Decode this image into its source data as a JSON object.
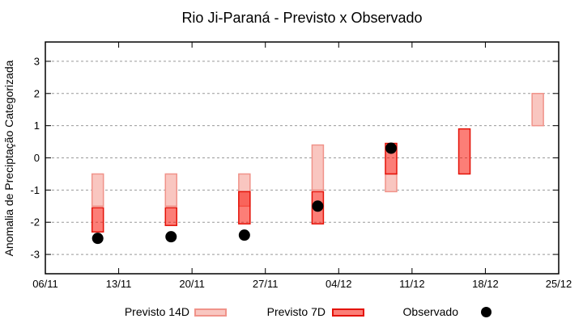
{
  "chart_data": {
    "type": "bar",
    "subtype": "range-bars-with-scatter",
    "title": "Rio Ji-Paraná - Previsto x Observado",
    "ylabel": "Anomalia de Preciptação Categorizada",
    "ylim": [
      -3.6,
      3.6
    ],
    "yticks": [
      3,
      2,
      1,
      0,
      -1,
      -2,
      -3
    ],
    "x_range_days": [
      0,
      49
    ],
    "xticks": [
      {
        "day": 0,
        "label": "06/11"
      },
      {
        "day": 7,
        "label": "13/11"
      },
      {
        "day": 14,
        "label": "20/11"
      },
      {
        "day": 21,
        "label": "27/11"
      },
      {
        "day": 28,
        "label": "04/12"
      },
      {
        "day": 35,
        "label": "11/12"
      },
      {
        "day": 42,
        "label": "18/12"
      },
      {
        "day": 49,
        "label": "25/12"
      }
    ],
    "grid": "horizontal-dashed",
    "legend_position": "bottom",
    "series": [
      {
        "name": "Previsto 14D",
        "type": "range-bar",
        "fill": "#f9c6c0",
        "stroke": "#f0938a",
        "bars": [
          {
            "date": "11/11",
            "day": 5,
            "high": -0.5,
            "low": -1.5
          },
          {
            "date": "18/11",
            "day": 12,
            "high": -0.5,
            "low": -1.5
          },
          {
            "date": "25/11",
            "day": 19,
            "high": -0.5,
            "low": -1.5
          },
          {
            "date": "02/12",
            "day": 26,
            "high": 0.4,
            "low": -1.0
          },
          {
            "date": "09/12",
            "day": 33,
            "high": -0.5,
            "low": -1.05
          },
          {
            "date": "23/12",
            "day": 47,
            "high": 2.0,
            "low": 1.0
          }
        ]
      },
      {
        "name": "Previsto 7D",
        "type": "range-bar",
        "fill": "#f91407",
        "fill_opacity": 0.55,
        "stroke": "#e41309",
        "bars": [
          {
            "date": "11/11",
            "day": 5,
            "high": -1.55,
            "low": -2.3
          },
          {
            "date": "18/11",
            "day": 12,
            "high": -1.55,
            "low": -2.1
          },
          {
            "date": "25/11",
            "day": 19,
            "high": -1.05,
            "low": -2.05
          },
          {
            "date": "02/12",
            "day": 26,
            "high": -1.05,
            "low": -2.05
          },
          {
            "date": "09/12",
            "day": 33,
            "high": 0.45,
            "low": -0.5
          },
          {
            "date": "16/12",
            "day": 40,
            "high": 0.9,
            "low": -0.5
          }
        ]
      },
      {
        "name": "Observado",
        "type": "scatter",
        "color": "#000000",
        "points": [
          {
            "date": "11/11",
            "day": 5,
            "value": -2.5
          },
          {
            "date": "18/11",
            "day": 12,
            "value": -2.45
          },
          {
            "date": "25/11",
            "day": 19,
            "value": -2.4
          },
          {
            "date": "02/12",
            "day": 26,
            "value": -1.5
          },
          {
            "date": "09/12",
            "day": 33,
            "value": 0.3
          }
        ]
      }
    ],
    "legend": [
      {
        "label": "Previsto 14D",
        "swatch": "light-pink-range-bar"
      },
      {
        "label": "Previsto 7D",
        "swatch": "red-range-bar"
      },
      {
        "label": "Observado",
        "swatch": "black-dot"
      }
    ]
  }
}
